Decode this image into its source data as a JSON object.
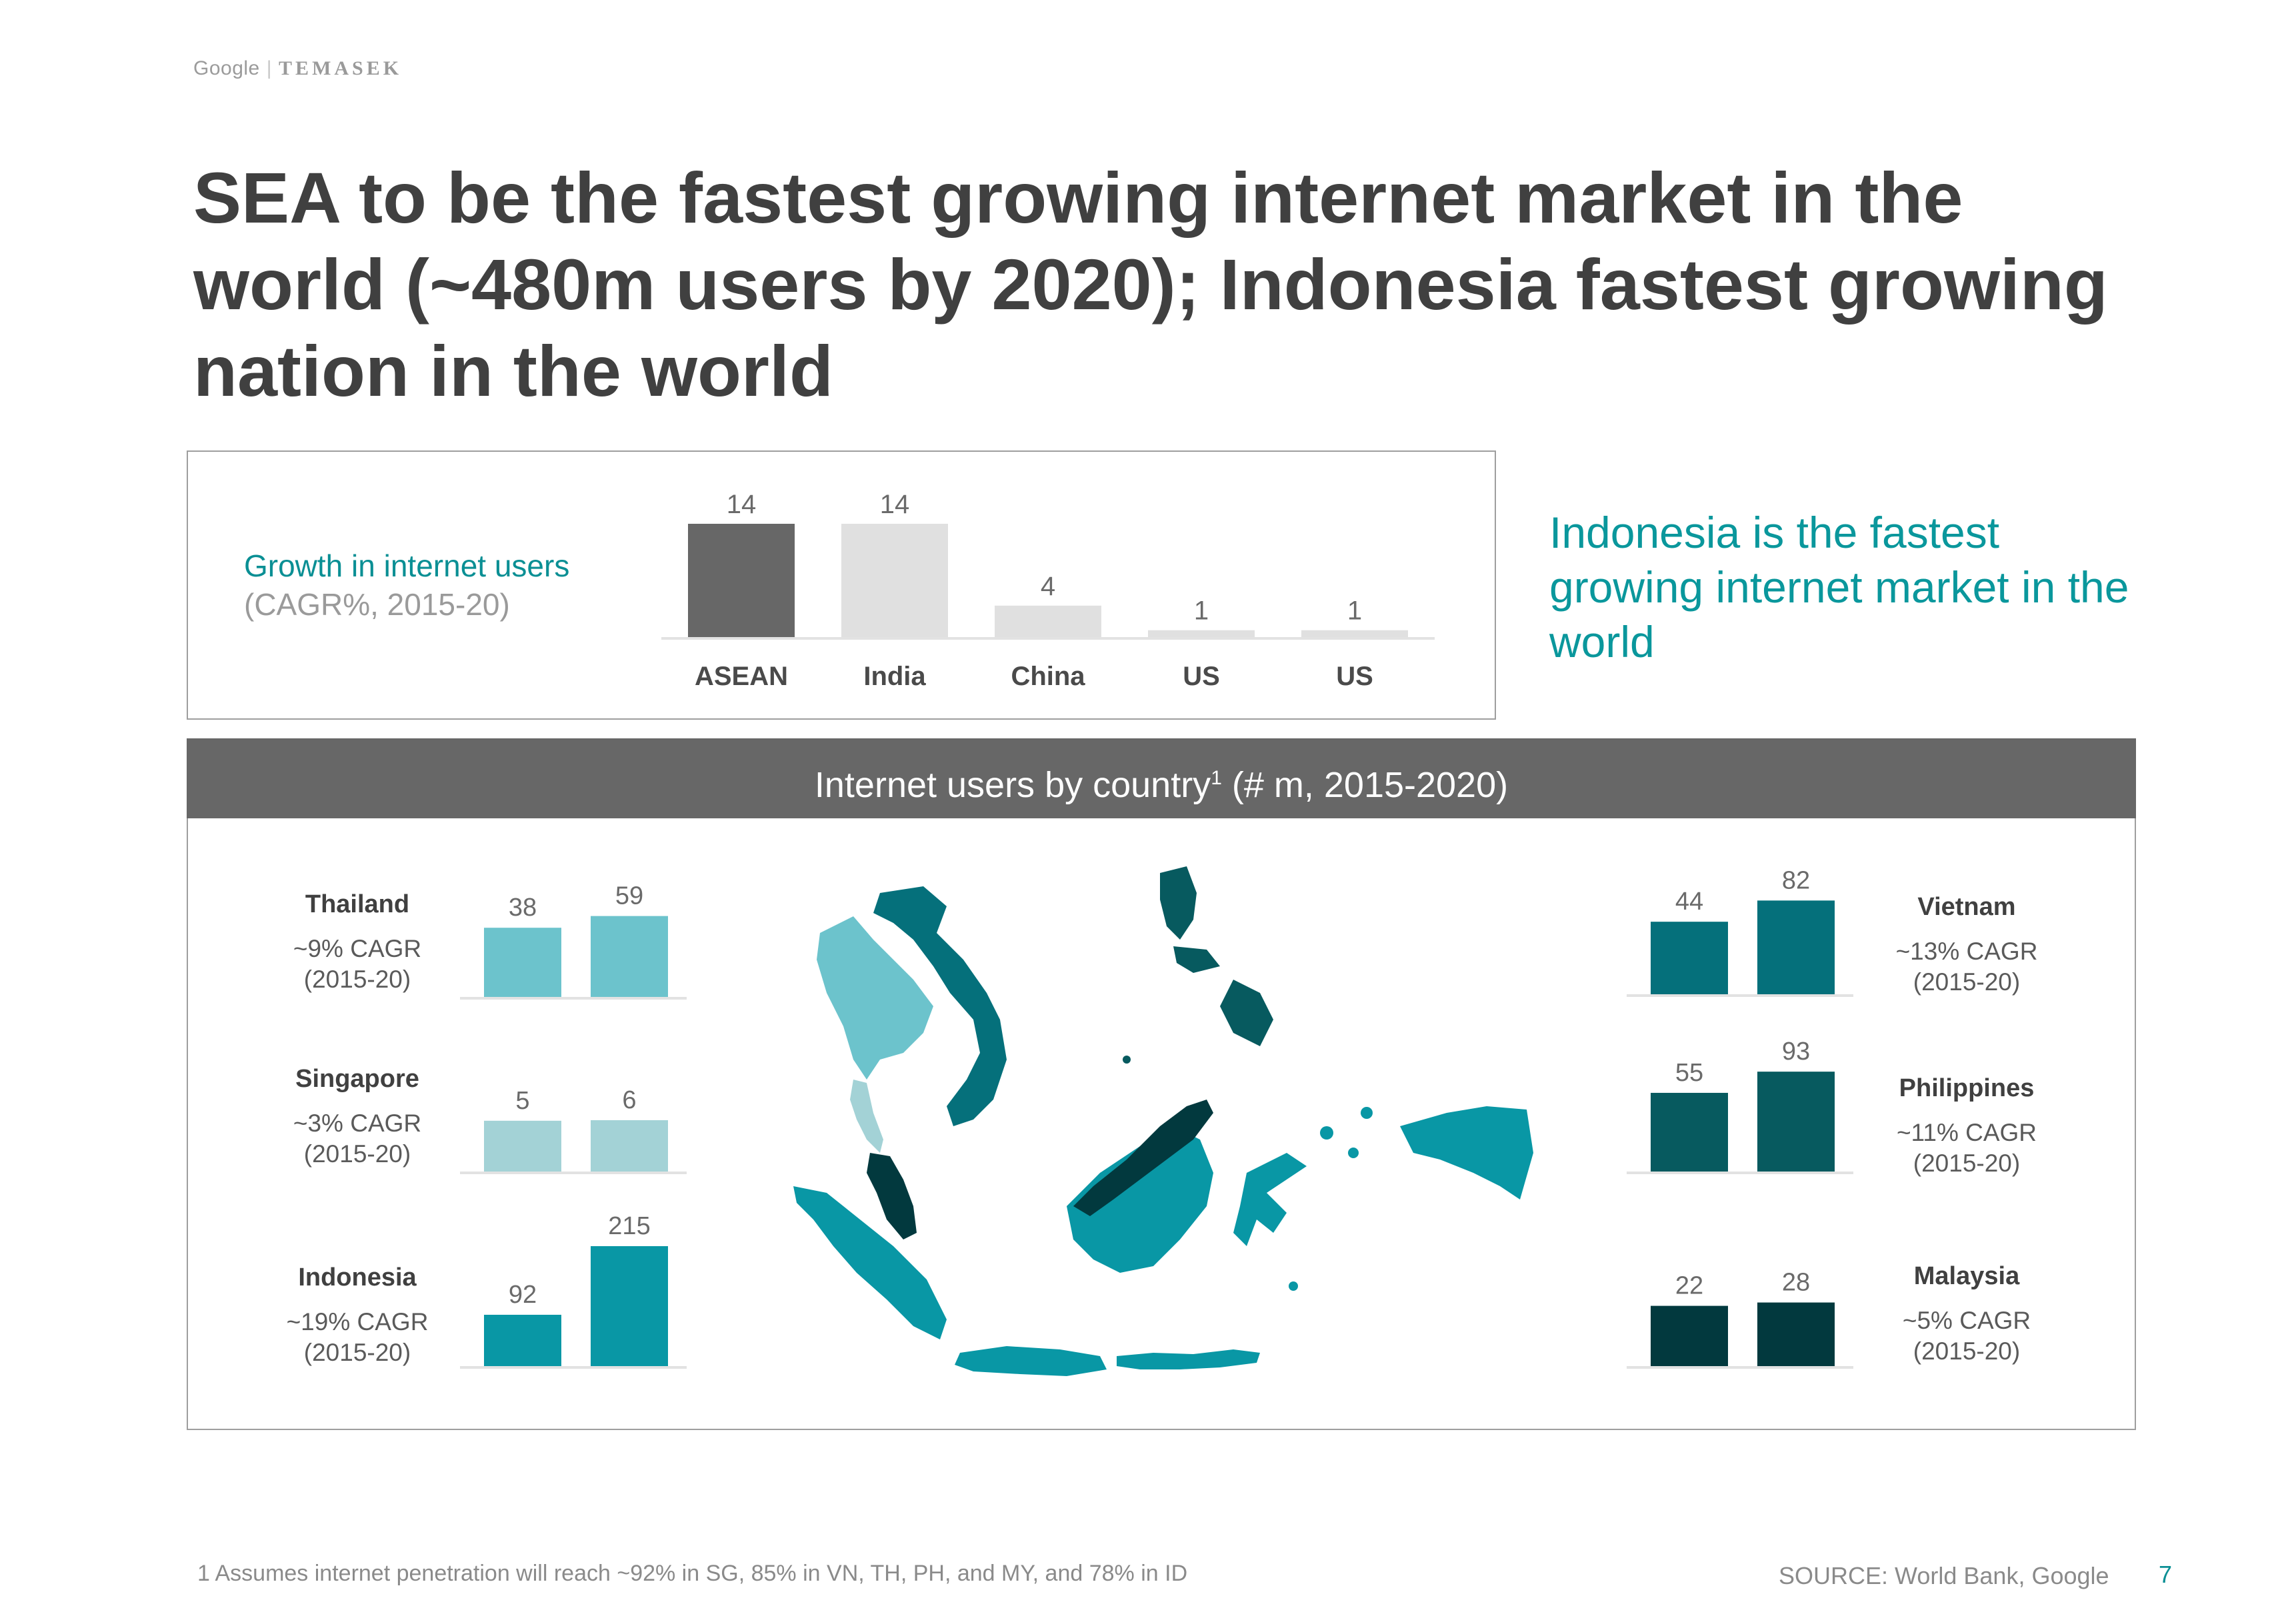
{
  "header": {
    "logo_google": "Google",
    "logo_temasek": "TEMASEK",
    "title": "SEA to be the fastest growing internet market in the world (~480m users by 2020); Indonesia fastest growing nation in the world"
  },
  "cagr_panel": {
    "label_line1": "Growth in internet users",
    "label_line2": "(CAGR%, 2015-20)"
  },
  "callout": "Indonesia is the fastest growing internet market in the world",
  "users_panel": {
    "header_text": "Internet users by country",
    "header_sup": "1",
    "header_suffix": " (# m, 2015-2020)"
  },
  "countries": {
    "thailand": {
      "name": "Thailand",
      "cagr": "~9% CAGR",
      "period": "(2015-20)"
    },
    "singapore": {
      "name": "Singapore",
      "cagr": "~3% CAGR",
      "period": "(2015-20)"
    },
    "indonesia": {
      "name": "Indonesia",
      "cagr": "~19% CAGR",
      "period": "(2015-20)"
    },
    "vietnam": {
      "name": "Vietnam",
      "cagr": "~13% CAGR",
      "period": "(2015-20)"
    },
    "philippines": {
      "name": "Philippines",
      "cagr": "~11% CAGR",
      "period": "(2015-20)"
    },
    "malaysia": {
      "name": "Malaysia",
      "cagr": "~5% CAGR",
      "period": "(2015-20)"
    }
  },
  "footer": {
    "footnote": "1 Assumes internet penetration will reach ~92% in SG, 85% in VN, TH, PH, and MY, and 78% in ID",
    "source": "SOURCE: World Bank, Google",
    "page": "7"
  },
  "colors": {
    "asean": "#676767",
    "others": "#e0e0e0",
    "thailand": "#6cc3cc",
    "singapore": "#a3d2d6",
    "indonesia": "#0997a5",
    "vietnam": "#05707b",
    "philippines": "#075a5f",
    "malaysia": "#02393e",
    "axis": "#e2e2e2",
    "value_label": "#6a6a6a"
  },
  "chart_data": [
    {
      "type": "bar",
      "categories": [
        "ASEAN",
        "India",
        "China",
        "US",
        "US"
      ],
      "values": [
        14,
        14,
        4,
        1,
        1
      ],
      "ylim": [
        0,
        14
      ]
    },
    {
      "type": "bar",
      "series": [
        {
          "country": "thailand",
          "x": [
            "2015",
            "2020"
          ],
          "values": [
            38,
            59
          ]
        },
        {
          "country": "singapore",
          "x": [
            "2015",
            "2020"
          ],
          "values": [
            5,
            6
          ]
        },
        {
          "country": "indonesia",
          "x": [
            "2015",
            "2020"
          ],
          "values": [
            92,
            215
          ]
        },
        {
          "country": "vietnam",
          "x": [
            "2015",
            "2020"
          ],
          "values": [
            44,
            82
          ]
        },
        {
          "country": "philippines",
          "x": [
            "2015",
            "2020"
          ],
          "values": [
            55,
            93
          ]
        },
        {
          "country": "malaysia",
          "x": [
            "2015",
            "2020"
          ],
          "values": [
            22,
            28
          ]
        }
      ]
    }
  ]
}
